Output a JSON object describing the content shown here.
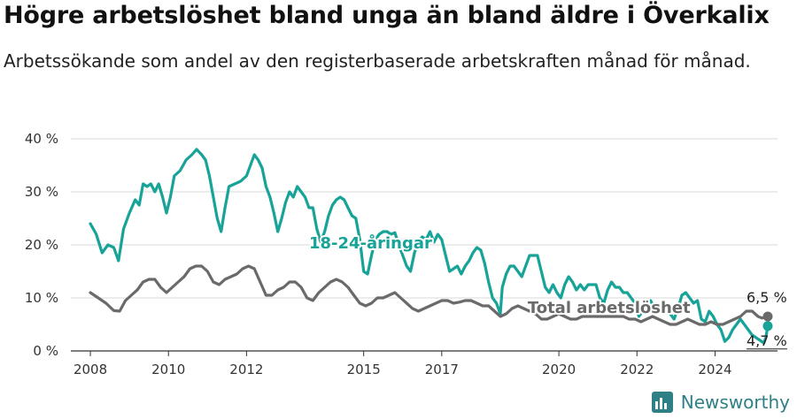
{
  "title": "Högre arbetslöshet bland unga än bland äldre i Överkalix",
  "subtitle": "Arbetssökande som andel av den registerbaserade arbetskraften månad för månad.",
  "brand": {
    "name": "Newsworthy",
    "color": "#2f7f86",
    "icon": "newsworthy-logo-icon"
  },
  "chart_data": {
    "type": "line",
    "ylim": [
      0,
      40
    ],
    "xlim": [
      2007.5,
      2025.6
    ],
    "yticks": [
      {
        "value": 0,
        "label": "0 %"
      },
      {
        "value": 10,
        "label": "10 %"
      },
      {
        "value": 20,
        "label": "20 %"
      },
      {
        "value": 30,
        "label": "30 %"
      },
      {
        "value": 40,
        "label": "40 %"
      }
    ],
    "xticks": [
      {
        "value": 2008,
        "label": "2008"
      },
      {
        "value": 2010,
        "label": "2010"
      },
      {
        "value": 2012,
        "label": "2012"
      },
      {
        "value": 2015,
        "label": "2015"
      },
      {
        "value": 2017,
        "label": "2017"
      },
      {
        "value": 2020,
        "label": "2020"
      },
      {
        "value": 2022,
        "label": "2022"
      },
      {
        "value": 2024,
        "label": "2024"
      }
    ],
    "grid": true,
    "series": [
      {
        "name": "18-24-åringar",
        "color": "#17a398",
        "end_label": "4,7 %",
        "points": [
          [
            2008.0,
            24
          ],
          [
            2008.15,
            22
          ],
          [
            2008.3,
            18.5
          ],
          [
            2008.45,
            20
          ],
          [
            2008.6,
            19.5
          ],
          [
            2008.72,
            17
          ],
          [
            2008.85,
            23
          ],
          [
            2009.0,
            26
          ],
          [
            2009.15,
            28.5
          ],
          [
            2009.25,
            27.5
          ],
          [
            2009.35,
            31.5
          ],
          [
            2009.45,
            31
          ],
          [
            2009.55,
            31.5
          ],
          [
            2009.65,
            30
          ],
          [
            2009.75,
            31.5
          ],
          [
            2009.85,
            29
          ],
          [
            2009.95,
            26
          ],
          [
            2010.05,
            29
          ],
          [
            2010.15,
            33
          ],
          [
            2010.3,
            34
          ],
          [
            2010.45,
            36
          ],
          [
            2010.6,
            37
          ],
          [
            2010.72,
            38
          ],
          [
            2010.85,
            37
          ],
          [
            2010.95,
            36
          ],
          [
            2011.05,
            33
          ],
          [
            2011.15,
            29
          ],
          [
            2011.25,
            25
          ],
          [
            2011.35,
            22.5
          ],
          [
            2011.45,
            27
          ],
          [
            2011.55,
            31
          ],
          [
            2011.7,
            31.5
          ],
          [
            2011.85,
            32
          ],
          [
            2012.0,
            33
          ],
          [
            2012.1,
            35
          ],
          [
            2012.2,
            37
          ],
          [
            2012.3,
            36
          ],
          [
            2012.4,
            34.5
          ],
          [
            2012.5,
            31
          ],
          [
            2012.6,
            29
          ],
          [
            2012.7,
            26
          ],
          [
            2012.8,
            22.5
          ],
          [
            2012.9,
            25
          ],
          [
            2013.0,
            28
          ],
          [
            2013.1,
            30
          ],
          [
            2013.2,
            29
          ],
          [
            2013.3,
            31
          ],
          [
            2013.4,
            30
          ],
          [
            2013.5,
            29
          ],
          [
            2013.6,
            27
          ],
          [
            2013.7,
            27
          ],
          [
            2013.8,
            23
          ],
          [
            2013.9,
            20.5
          ],
          [
            2014.0,
            22.5
          ],
          [
            2014.1,
            25.5
          ],
          [
            2014.2,
            27.5
          ],
          [
            2014.3,
            28.5
          ],
          [
            2014.4,
            29
          ],
          [
            2014.5,
            28.5
          ],
          [
            2014.6,
            27
          ],
          [
            2014.7,
            25.5
          ],
          [
            2014.8,
            25
          ],
          [
            2014.9,
            21
          ],
          [
            2015.0,
            15
          ],
          [
            2015.1,
            14.5
          ],
          [
            2015.2,
            18
          ],
          [
            2015.3,
            21
          ],
          [
            2015.4,
            22
          ],
          [
            2015.5,
            22.5
          ],
          [
            2015.6,
            22.5
          ],
          [
            2015.7,
            22
          ],
          [
            2015.8,
            22.3
          ],
          [
            2015.9,
            20
          ],
          [
            2016.0,
            18
          ],
          [
            2016.1,
            16
          ],
          [
            2016.2,
            15
          ],
          [
            2016.3,
            18.5
          ],
          [
            2016.4,
            20.5
          ],
          [
            2016.5,
            21.5
          ],
          [
            2016.6,
            21
          ],
          [
            2016.7,
            22.5
          ],
          [
            2016.8,
            20.5
          ],
          [
            2016.9,
            22
          ],
          [
            2017.0,
            21
          ],
          [
            2017.1,
            18
          ],
          [
            2017.2,
            15
          ],
          [
            2017.3,
            15.5
          ],
          [
            2017.4,
            16
          ],
          [
            2017.5,
            14.5
          ],
          [
            2017.6,
            16
          ],
          [
            2017.7,
            17
          ],
          [
            2017.8,
            18.5
          ],
          [
            2017.9,
            19.5
          ],
          [
            2018.0,
            19
          ],
          [
            2018.1,
            16.5
          ],
          [
            2018.2,
            13
          ],
          [
            2018.3,
            10
          ],
          [
            2018.4,
            9
          ],
          [
            2018.5,
            7
          ],
          [
            2018.55,
            12
          ],
          [
            2018.65,
            14.5
          ],
          [
            2018.75,
            16
          ],
          [
            2018.85,
            16
          ],
          [
            2018.95,
            15
          ],
          [
            2019.05,
            14
          ],
          [
            2019.15,
            16
          ],
          [
            2019.25,
            18
          ],
          [
            2019.35,
            18
          ],
          [
            2019.45,
            18
          ],
          [
            2019.55,
            15
          ],
          [
            2019.65,
            12
          ],
          [
            2019.75,
            11
          ],
          [
            2019.85,
            12.5
          ],
          [
            2019.95,
            11
          ],
          [
            2020.05,
            10
          ],
          [
            2020.15,
            12.5
          ],
          [
            2020.25,
            14
          ],
          [
            2020.35,
            13
          ],
          [
            2020.45,
            11.5
          ],
          [
            2020.55,
            12.5
          ],
          [
            2020.65,
            11.5
          ],
          [
            2020.75,
            12.5
          ],
          [
            2020.85,
            12.5
          ],
          [
            2020.95,
            12.5
          ],
          [
            2021.05,
            10
          ],
          [
            2021.15,
            9
          ],
          [
            2021.25,
            11.5
          ],
          [
            2021.35,
            13
          ],
          [
            2021.45,
            12
          ],
          [
            2021.55,
            12
          ],
          [
            2021.65,
            11
          ],
          [
            2021.75,
            11
          ],
          [
            2021.85,
            10
          ],
          [
            2021.95,
            9
          ],
          [
            2022.05,
            6.5
          ],
          [
            2022.15,
            7.5
          ],
          [
            2022.25,
            9
          ],
          [
            2022.35,
            9.5
          ],
          [
            2022.45,
            8
          ],
          [
            2022.55,
            7.5
          ],
          [
            2022.65,
            8
          ],
          [
            2022.75,
            7.5
          ],
          [
            2022.85,
            7
          ],
          [
            2022.95,
            6
          ],
          [
            2023.05,
            8
          ],
          [
            2023.15,
            10.5
          ],
          [
            2023.25,
            11
          ],
          [
            2023.35,
            10
          ],
          [
            2023.45,
            9
          ],
          [
            2023.55,
            9.5
          ],
          [
            2023.65,
            6
          ],
          [
            2023.75,
            5.5
          ],
          [
            2023.85,
            7.5
          ],
          [
            2023.95,
            6.5
          ],
          [
            2024.05,
            5
          ],
          [
            2024.15,
            4
          ],
          [
            2024.25,
            1.8
          ],
          [
            2024.35,
            2.5
          ],
          [
            2024.45,
            4
          ],
          [
            2024.55,
            5
          ],
          [
            2024.65,
            6
          ],
          [
            2024.75,
            5
          ],
          [
            2024.85,
            4
          ],
          [
            2024.95,
            3
          ],
          [
            2025.05,
            2.5
          ],
          [
            2025.15,
            2
          ],
          [
            2025.25,
            1.5
          ],
          [
            2025.3,
            2.5
          ],
          [
            2025.35,
            4.7
          ]
        ],
        "label_at": [
          2013.6,
          19.3
        ]
      },
      {
        "name": "Total arbetslöshet",
        "color": "#6a6a6a",
        "end_label": "6,5 %",
        "points": [
          [
            2008.0,
            11
          ],
          [
            2008.2,
            10
          ],
          [
            2008.4,
            9
          ],
          [
            2008.6,
            7.6
          ],
          [
            2008.75,
            7.5
          ],
          [
            2008.9,
            9.5
          ],
          [
            2009.05,
            10.5
          ],
          [
            2009.2,
            11.5
          ],
          [
            2009.35,
            13
          ],
          [
            2009.5,
            13.5
          ],
          [
            2009.65,
            13.5
          ],
          [
            2009.8,
            12
          ],
          [
            2009.95,
            11
          ],
          [
            2010.1,
            12
          ],
          [
            2010.25,
            13
          ],
          [
            2010.4,
            14
          ],
          [
            2010.55,
            15.5
          ],
          [
            2010.7,
            16
          ],
          [
            2010.85,
            16
          ],
          [
            2011.0,
            15
          ],
          [
            2011.15,
            13
          ],
          [
            2011.3,
            12.5
          ],
          [
            2011.45,
            13.5
          ],
          [
            2011.6,
            14
          ],
          [
            2011.75,
            14.5
          ],
          [
            2011.9,
            15.5
          ],
          [
            2012.05,
            16
          ],
          [
            2012.2,
            15.5
          ],
          [
            2012.35,
            13
          ],
          [
            2012.5,
            10.5
          ],
          [
            2012.65,
            10.5
          ],
          [
            2012.8,
            11.5
          ],
          [
            2012.95,
            12
          ],
          [
            2013.1,
            13
          ],
          [
            2013.25,
            13
          ],
          [
            2013.4,
            12
          ],
          [
            2013.55,
            10
          ],
          [
            2013.7,
            9.5
          ],
          [
            2013.85,
            11
          ],
          [
            2014.0,
            12
          ],
          [
            2014.15,
            13
          ],
          [
            2014.3,
            13.5
          ],
          [
            2014.45,
            13
          ],
          [
            2014.6,
            12
          ],
          [
            2014.75,
            10.5
          ],
          [
            2014.9,
            9
          ],
          [
            2015.05,
            8.5
          ],
          [
            2015.2,
            9
          ],
          [
            2015.35,
            10
          ],
          [
            2015.5,
            10
          ],
          [
            2015.65,
            10.5
          ],
          [
            2015.8,
            11
          ],
          [
            2015.95,
            10
          ],
          [
            2016.1,
            9
          ],
          [
            2016.25,
            8
          ],
          [
            2016.4,
            7.5
          ],
          [
            2016.55,
            8
          ],
          [
            2016.7,
            8.5
          ],
          [
            2016.85,
            9
          ],
          [
            2017.0,
            9.5
          ],
          [
            2017.15,
            9.5
          ],
          [
            2017.3,
            9
          ],
          [
            2017.45,
            9.2
          ],
          [
            2017.6,
            9.5
          ],
          [
            2017.75,
            9.5
          ],
          [
            2017.9,
            9
          ],
          [
            2018.05,
            8.5
          ],
          [
            2018.2,
            8.5
          ],
          [
            2018.35,
            7.5
          ],
          [
            2018.5,
            6.5
          ],
          [
            2018.65,
            7
          ],
          [
            2018.8,
            8
          ],
          [
            2018.95,
            8.5
          ],
          [
            2019.1,
            8
          ],
          [
            2019.25,
            7.5
          ],
          [
            2019.4,
            7
          ],
          [
            2019.55,
            6
          ],
          [
            2019.7,
            6
          ],
          [
            2019.85,
            6.5
          ],
          [
            2020.0,
            7
          ],
          [
            2020.15,
            6.5
          ],
          [
            2020.3,
            6
          ],
          [
            2020.45,
            6
          ],
          [
            2020.6,
            6.5
          ],
          [
            2020.75,
            6.5
          ],
          [
            2020.9,
            6.5
          ],
          [
            2021.05,
            6.5
          ],
          [
            2021.2,
            6.5
          ],
          [
            2021.35,
            6.5
          ],
          [
            2021.5,
            6.5
          ],
          [
            2021.65,
            6.5
          ],
          [
            2021.8,
            6
          ],
          [
            2021.95,
            6
          ],
          [
            2022.1,
            5.5
          ],
          [
            2022.25,
            6
          ],
          [
            2022.4,
            6.5
          ],
          [
            2022.55,
            6
          ],
          [
            2022.7,
            5.5
          ],
          [
            2022.85,
            5
          ],
          [
            2023.0,
            5
          ],
          [
            2023.15,
            5.5
          ],
          [
            2023.3,
            6
          ],
          [
            2023.45,
            5.5
          ],
          [
            2023.6,
            5
          ],
          [
            2023.75,
            5
          ],
          [
            2023.9,
            5.5
          ],
          [
            2024.05,
            5
          ],
          [
            2024.2,
            5
          ],
          [
            2024.35,
            5.5
          ],
          [
            2024.5,
            6
          ],
          [
            2024.65,
            6.5
          ],
          [
            2024.8,
            7.5
          ],
          [
            2024.95,
            7.5
          ],
          [
            2025.1,
            6.5
          ],
          [
            2025.2,
            6.2
          ],
          [
            2025.35,
            6.5
          ]
        ],
        "label_at": [
          2019.2,
          7.2
        ]
      }
    ]
  }
}
